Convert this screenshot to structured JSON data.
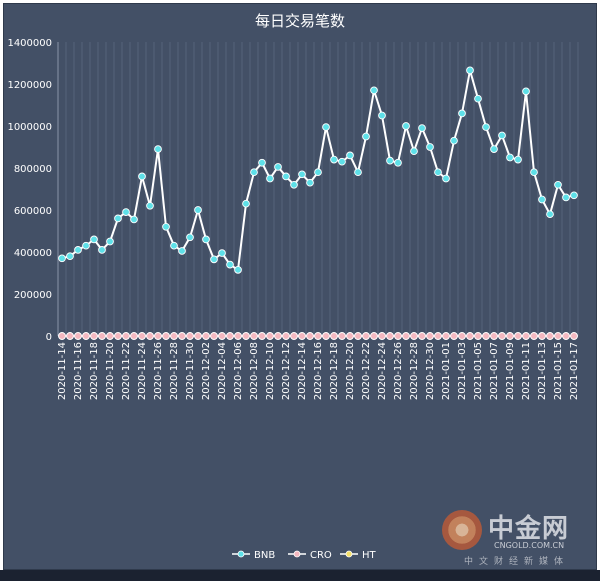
{
  "chart_data": {
    "type": "line",
    "title": "每日交易笔数",
    "ylim": [
      0,
      1400000
    ],
    "yticks": [
      "0",
      "200000",
      "400000",
      "600000",
      "800000",
      "1000000",
      "1200000",
      "1400000"
    ],
    "grid": "vertical",
    "legend_position": "bottom",
    "categories": [
      "2020-11-14",
      "2020-11-15",
      "2020-11-16",
      "2020-11-17",
      "2020-11-18",
      "2020-11-19",
      "2020-11-20",
      "2020-11-21",
      "2020-11-22",
      "2020-11-23",
      "2020-11-24",
      "2020-11-25",
      "2020-11-26",
      "2020-11-27",
      "2020-11-28",
      "2020-11-29",
      "2020-11-30",
      "2020-12-01",
      "2020-12-02",
      "2020-12-03",
      "2020-12-04",
      "2020-12-05",
      "2020-12-06",
      "2020-12-07",
      "2020-12-08",
      "2020-12-09",
      "2020-12-10",
      "2020-12-11",
      "2020-12-12",
      "2020-12-13",
      "2020-12-14",
      "2020-12-15",
      "2020-12-16",
      "2020-12-17",
      "2020-12-18",
      "2020-12-19",
      "2020-12-20",
      "2020-12-21",
      "2020-12-22",
      "2020-12-23",
      "2020-12-24",
      "2020-12-25",
      "2020-12-26",
      "2020-12-27",
      "2020-12-28",
      "2020-12-29",
      "2020-12-30",
      "2020-12-31",
      "2021-01-01",
      "2021-01-02",
      "2021-01-03",
      "2021-01-04",
      "2021-01-05",
      "2021-01-06",
      "2021-01-07",
      "2021-01-08",
      "2021-01-09",
      "2021-01-10",
      "2021-01-11",
      "2021-01-12",
      "2021-01-13",
      "2021-01-14",
      "2021-01-15",
      "2021-01-16",
      "2021-01-17"
    ],
    "series": [
      {
        "name": "BNB",
        "color": "#5ee0e8",
        "values": [
          370000,
          380000,
          410000,
          430000,
          460000,
          410000,
          450000,
          560000,
          590000,
          555000,
          760000,
          620000,
          890000,
          520000,
          430000,
          405000,
          470000,
          600000,
          460000,
          365000,
          395000,
          340000,
          315000,
          630000,
          780000,
          825000,
          750000,
          805000,
          760000,
          720000,
          770000,
          730000,
          780000,
          995000,
          840000,
          830000,
          860000,
          780000,
          950000,
          1170000,
          1050000,
          835000,
          825000,
          1000000,
          880000,
          990000,
          900000,
          780000,
          750000,
          930000,
          1060000,
          1265000,
          1130000,
          995000,
          890000,
          955000,
          850000,
          840000,
          1165000,
          780000,
          650000,
          580000,
          720000,
          660000,
          670000
        ]
      },
      {
        "name": "CRO",
        "color": "#f4b8c0",
        "values": [
          0,
          0,
          0,
          0,
          0,
          0,
          0,
          0,
          0,
          0,
          0,
          0,
          0,
          0,
          0,
          0,
          0,
          0,
          0,
          0,
          0,
          0,
          0,
          0,
          0,
          0,
          0,
          0,
          0,
          0,
          0,
          0,
          0,
          0,
          0,
          0,
          0,
          0,
          0,
          0,
          0,
          0,
          0,
          0,
          0,
          0,
          0,
          0,
          0,
          0,
          0,
          0,
          0,
          0,
          0,
          0,
          0,
          0,
          0,
          0,
          0,
          0,
          0,
          0,
          0
        ]
      },
      {
        "name": "HT",
        "color": "#f5e06a",
        "values": [
          0,
          0,
          0,
          0,
          0,
          0,
          0,
          0,
          0,
          0,
          0,
          0,
          0,
          0,
          0,
          0,
          0,
          0,
          0,
          0,
          0,
          0,
          0,
          0,
          0,
          0,
          0,
          0,
          0,
          0,
          0,
          0,
          0,
          0,
          0,
          0,
          0,
          0,
          0,
          0,
          0,
          0,
          0,
          0,
          0,
          0,
          0,
          0,
          0,
          0,
          0,
          0,
          0,
          0,
          0,
          0,
          0,
          0,
          0,
          0,
          0,
          0,
          0,
          0,
          0
        ]
      }
    ]
  },
  "watermark": {
    "cn": "中金网",
    "en": "CNGOLD.COM.CN",
    "sub": "中文财经新媒体"
  }
}
